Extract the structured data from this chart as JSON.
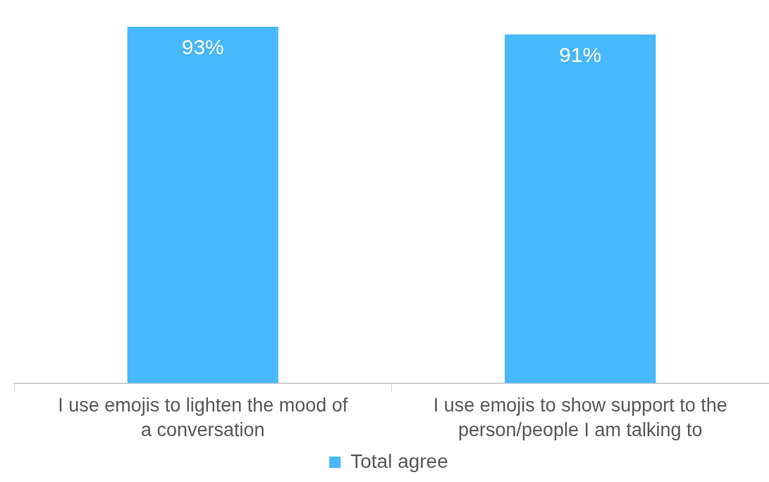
{
  "chart_data": {
    "type": "bar",
    "categories": [
      "I use emojis to lighten the mood of a conversation",
      "I use emojis to show support to the person/people I am talking to"
    ],
    "series": [
      {
        "name": "Total agree",
        "color": "#47b8fb",
        "values": [
          93,
          91
        ],
        "value_labels": [
          "93%",
          "91%"
        ]
      }
    ],
    "legend": "bottom",
    "grid": false
  }
}
